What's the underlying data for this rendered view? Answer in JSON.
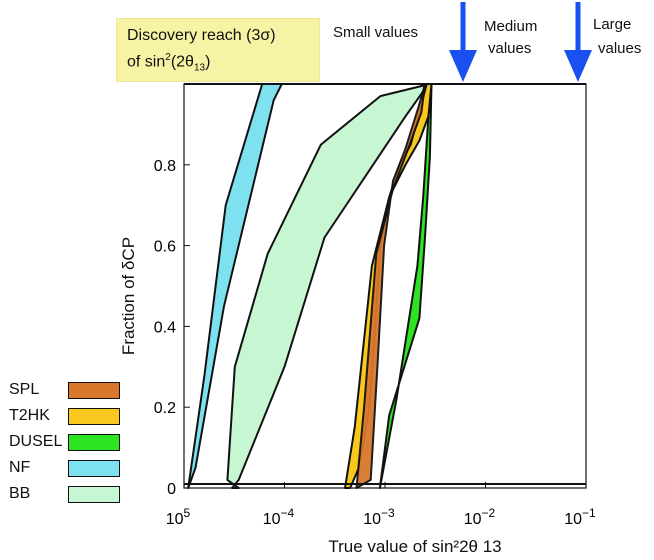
{
  "title": {
    "line1": "Discovery reach (3σ)",
    "line2_prefix": "of sin",
    "line2_sup": "2",
    "line2_mid": "(2θ",
    "line2_sub": "13",
    "line2_suffix": ")"
  },
  "region_labels": {
    "small": "Small values",
    "medium_line1": "Medium",
    "medium_line2": "values",
    "large_line1": "Large",
    "large_line2": "values"
  },
  "colors": {
    "SPL": "#d9782c",
    "T2HK": "#f9c81f",
    "DUSEL": "#2ee321",
    "NF": "#7ee1ef",
    "BB": "#c6f7d2",
    "arrow": "#1a4ff0",
    "title_bg": "#f7f3a5"
  },
  "chart_data": {
    "type": "area",
    "xlabel": "True  value of sin²2θ 13",
    "ylabel": "Fraction  of δCP",
    "xscale": "log",
    "xlim": [
      1e-05,
      0.1
    ],
    "ylim": [
      0,
      1
    ],
    "x_tick_labels": [
      "10 5",
      "10−4",
      "10−3",
      "10−2",
      "10−1"
    ],
    "x_tick_values": [
      1e-05,
      0.0001,
      0.001,
      0.01,
      0.1
    ],
    "y_tick_labels": [
      "0",
      "0.2",
      "0.4",
      "0.6",
      "0.8"
    ],
    "y_tick_values": [
      0,
      0.2,
      0.4,
      0.6,
      0.8
    ],
    "legend_position": "left-bottom",
    "series": [
      {
        "name": "BB",
        "x": [
          3e-05,
          3.5e-05,
          0.0001,
          0.00025,
          0.0016,
          0.0027,
          0.0028,
          0.0009,
          0.00023,
          6.8e-05,
          3.2e-05,
          2.7e-05,
          3.5e-05
        ],
        "y": [
          0,
          0.02,
          0.3,
          0.62,
          0.92,
          1.0,
          1.0,
          0.97,
          0.85,
          0.58,
          0.3,
          0.02,
          0
        ]
      },
      {
        "name": "NF",
        "x": [
          1.1e-05,
          1.3e-05,
          2.5e-05,
          7.8e-05,
          9.4e-05,
          6e-05,
          2.6e-05,
          1.6e-05,
          1.1e-05
        ],
        "y": [
          0,
          0.05,
          0.45,
          0.96,
          1.0,
          1.0,
          0.7,
          0.28,
          0
        ]
      },
      {
        "name": "DUSEL",
        "x": [
          0.00089,
          0.0011,
          0.0022,
          0.0025,
          0.0028,
          0.0029,
          0.0027,
          0.0024,
          0.0021,
          0.0013,
          0.00089
        ],
        "y": [
          0,
          0.18,
          0.42,
          0.62,
          0.82,
          1.0,
          0.92,
          0.72,
          0.55,
          0.22,
          0
        ]
      },
      {
        "name": "T2HK",
        "x": [
          0.0004,
          0.0005,
          0.00074,
          0.0011,
          0.0016,
          0.0022,
          0.0027,
          0.0029,
          0.0026,
          0.0018,
          0.0014,
          0.0011,
          0.0009,
          0.0008,
          0.0007,
          0.00055,
          0.00045,
          0.0004
        ],
        "y": [
          0,
          0.15,
          0.55,
          0.72,
          0.8,
          0.86,
          0.92,
          1.0,
          1.0,
          0.85,
          0.8,
          0.72,
          0.6,
          0.4,
          0.2,
          0.05,
          0.0,
          0
        ]
      },
      {
        "name": "SPL",
        "x": [
          0.00052,
          0.00062,
          0.00082,
          0.0012,
          0.0017,
          0.0023,
          0.0025,
          0.0022,
          0.0016,
          0.0012,
          0.00098,
          0.00084,
          0.00072,
          0.00052
        ],
        "y": [
          0,
          0.2,
          0.58,
          0.74,
          0.84,
          0.93,
          1.0,
          0.95,
          0.84,
          0.76,
          0.6,
          0.3,
          0.02,
          0
        ]
      }
    ]
  },
  "legend": [
    {
      "label": "SPL",
      "key": "SPL"
    },
    {
      "label": "T2HK",
      "key": "T2HK"
    },
    {
      "label": "DUSEL",
      "key": "DUSEL"
    },
    {
      "label": "NF",
      "key": "NF"
    },
    {
      "label": "BB",
      "key": "BB"
    }
  ]
}
